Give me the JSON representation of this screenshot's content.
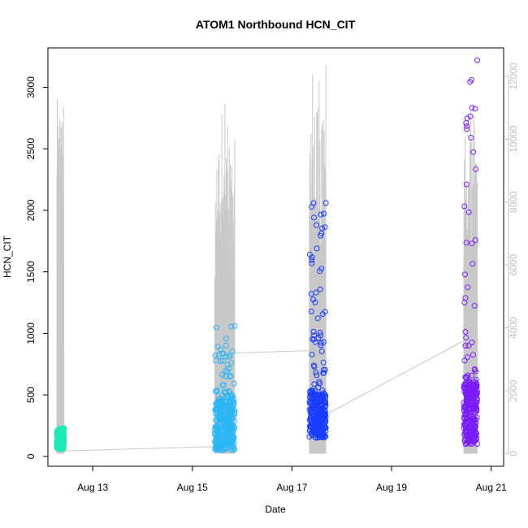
{
  "chart_data": {
    "type": "scatter",
    "title": "ATOM1 Northbound HCN_CIT",
    "xlabel": "Date",
    "ylabel": "HCN_CIT",
    "x_ticks": [
      {
        "day": 13,
        "label": "Aug 13"
      },
      {
        "day": 15,
        "label": "Aug 15"
      },
      {
        "day": 17,
        "label": "Aug 17"
      },
      {
        "day": 19,
        "label": "Aug 19"
      },
      {
        "day": 21,
        "label": "Aug 21"
      }
    ],
    "xlim": [
      12.1,
      21.25
    ],
    "ylim": [
      -80,
      3320
    ],
    "y_ticks": [
      0,
      500,
      1000,
      1500,
      2000,
      2500,
      3000
    ],
    "y2lim": [
      -400,
      12900
    ],
    "y2_ticks": [
      0,
      2000,
      4000,
      6000,
      8000,
      10000,
      12000
    ],
    "grid": false,
    "series": [
      {
        "color": "#1de9b6",
        "x_range": [
          12.28,
          12.42
        ],
        "y_typical": [
          60,
          200
        ],
        "y_peak": 230,
        "y2_spikes": [
          10500,
          10800,
          11000,
          11300,
          8500,
          6000
        ]
      },
      {
        "color": "#29b6f6",
        "x_range": [
          15.45,
          15.85
        ],
        "y_typical": [
          50,
          450
        ],
        "y_peak": 1060,
        "y2_spikes": [
          8500,
          9000,
          9400,
          10000,
          10500,
          11000,
          12200,
          9600
        ]
      },
      {
        "color": "#1a3cff",
        "x_range": [
          17.35,
          17.68
        ],
        "y_typical": [
          150,
          500
        ],
        "y_peak": 2060,
        "y2_spikes": [
          9500,
          10200,
          11000,
          12500,
          11500,
          10800,
          12100,
          9200
        ]
      },
      {
        "color": "#7a1cff",
        "x_range": [
          20.45,
          20.72
        ],
        "y_typical": [
          100,
          600
        ],
        "y_peak": 3220,
        "y2_spikes": [
          9400,
          9000,
          8800,
          10200,
          9600,
          10800,
          11500,
          8500
        ]
      }
    ],
    "connector_line": [
      {
        "day": 12.4,
        "hcn": 45
      },
      {
        "day": 15.5,
        "hcn": 80
      },
      {
        "day": 15.85,
        "hcn": 840
      },
      {
        "day": 17.35,
        "hcn": 860
      },
      {
        "day": 17.68,
        "hcn": 340
      },
      {
        "day": 20.5,
        "hcn": 950
      }
    ]
  }
}
